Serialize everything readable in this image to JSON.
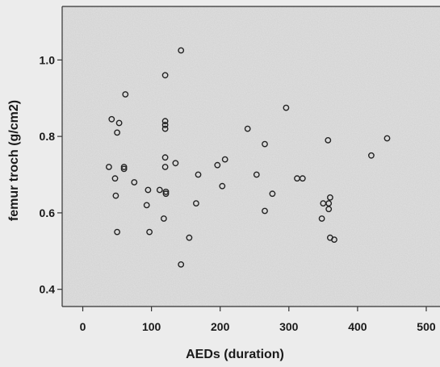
{
  "chart_data": {
    "type": "scatter",
    "xlabel": "AEDs (duration)",
    "ylabel": "femur troch (g/cm2)",
    "xlim": [
      -30,
      520
    ],
    "ylim": [
      0.355,
      1.14
    ],
    "xticks": [
      0,
      100,
      200,
      300,
      400,
      500
    ],
    "yticks": [
      0.4,
      0.6,
      0.8,
      1.0
    ],
    "xtick_labels": [
      "0",
      "100",
      "200",
      "300",
      "400",
      "500"
    ],
    "ytick_labels": [
      "0.4",
      "0.6",
      "0.8",
      "1.0"
    ],
    "grid": false,
    "colors": {
      "plot_background": "#e1e1e1",
      "page_background": "#ececec",
      "marker": "#222222"
    },
    "points": [
      [
        38,
        0.72
      ],
      [
        42,
        0.845
      ],
      [
        47,
        0.69
      ],
      [
        48,
        0.645
      ],
      [
        50,
        0.55
      ],
      [
        50,
        0.81
      ],
      [
        53,
        0.835
      ],
      [
        60,
        0.715
      ],
      [
        60,
        0.72
      ],
      [
        62,
        0.91
      ],
      [
        75,
        0.68
      ],
      [
        93,
        0.62
      ],
      [
        95,
        0.66
      ],
      [
        97,
        0.55
      ],
      [
        112,
        0.66
      ],
      [
        118,
        0.585
      ],
      [
        120,
        0.96
      ],
      [
        120,
        0.84
      ],
      [
        120,
        0.83
      ],
      [
        120,
        0.82
      ],
      [
        120,
        0.745
      ],
      [
        120,
        0.72
      ],
      [
        121,
        0.655
      ],
      [
        121,
        0.65
      ],
      [
        135,
        0.73
      ],
      [
        143,
        0.465
      ],
      [
        143,
        1.025
      ],
      [
        155,
        0.535
      ],
      [
        165,
        0.625
      ],
      [
        168,
        0.7
      ],
      [
        196,
        0.725
      ],
      [
        203,
        0.67
      ],
      [
        207,
        0.74
      ],
      [
        240,
        0.82
      ],
      [
        253,
        0.7
      ],
      [
        265,
        0.78
      ],
      [
        265,
        0.605
      ],
      [
        276,
        0.65
      ],
      [
        296,
        0.875
      ],
      [
        312,
        0.69
      ],
      [
        320,
        0.69
      ],
      [
        348,
        0.585
      ],
      [
        350,
        0.625
      ],
      [
        357,
        0.79
      ],
      [
        358,
        0.625
      ],
      [
        358,
        0.61
      ],
      [
        360,
        0.64
      ],
      [
        360,
        0.535
      ],
      [
        366,
        0.53
      ],
      [
        420,
        0.75
      ],
      [
        443,
        0.795
      ]
    ]
  }
}
